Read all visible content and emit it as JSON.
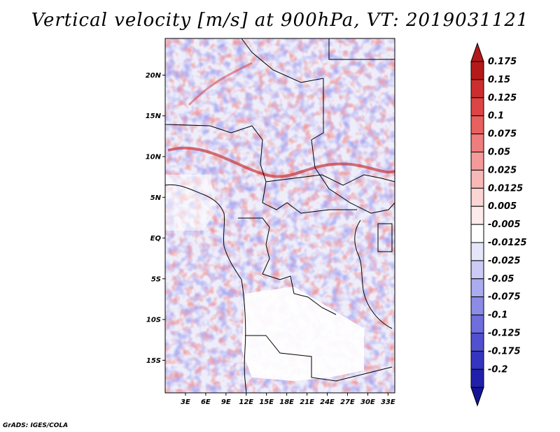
{
  "title": "Vertical velocity [m/s] at 900hPa, VT: 2019031121",
  "credit": "GrADS: IGES/COLA",
  "map": {
    "lat_range": [
      -19,
      24.5
    ],
    "lon_range": [
      0,
      34
    ],
    "lat_ticks": [
      {
        "value": 20,
        "label": "20N"
      },
      {
        "value": 15,
        "label": "15N"
      },
      {
        "value": 10,
        "label": "10N"
      },
      {
        "value": 5,
        "label": "5N"
      },
      {
        "value": 0,
        "label": "EQ"
      },
      {
        "value": -5,
        "label": "5S"
      },
      {
        "value": -10,
        "label": "10S"
      },
      {
        "value": -15,
        "label": "15S"
      }
    ],
    "lon_ticks": [
      {
        "value": 3,
        "label": "3E"
      },
      {
        "value": 6,
        "label": "6E"
      },
      {
        "value": 9,
        "label": "9E"
      },
      {
        "value": 12,
        "label": "12E"
      },
      {
        "value": 15,
        "label": "15E"
      },
      {
        "value": 18,
        "label": "18E"
      },
      {
        "value": 21,
        "label": "21E"
      },
      {
        "value": 24,
        "label": "24E"
      },
      {
        "value": 27,
        "label": "27E"
      },
      {
        "value": 30,
        "label": "30E"
      },
      {
        "value": 33,
        "label": "33E"
      }
    ]
  },
  "colorbar": {
    "levels": [
      {
        "label": "0.175",
        "color": "#b51a1a"
      },
      {
        "label": "0.15",
        "color": "#cc2e2e"
      },
      {
        "label": "0.125",
        "color": "#dd4545"
      },
      {
        "label": "0.1",
        "color": "#e86060"
      },
      {
        "label": "0.075",
        "color": "#ef7d7d"
      },
      {
        "label": "0.05",
        "color": "#f49a9a"
      },
      {
        "label": "0.025",
        "color": "#f8b8b8"
      },
      {
        "label": "0.0125",
        "color": "#fbd4d4"
      },
      {
        "label": "0.005",
        "color": "#fdeaea"
      },
      {
        "label": "-0.005",
        "color": "#ffffff"
      },
      {
        "label": "-0.0125",
        "color": "#e6e6fb"
      },
      {
        "label": "-0.025",
        "color": "#cbcbf6"
      },
      {
        "label": "-0.05",
        "color": "#ababef"
      },
      {
        "label": "-0.075",
        "color": "#8c8ce7"
      },
      {
        "label": "-0.1",
        "color": "#6e6edd"
      },
      {
        "label": "-0.125",
        "color": "#5050d0"
      },
      {
        "label": "-0.175",
        "color": "#3535bf"
      },
      {
        "label": "-0.2",
        "color": "#2020aa"
      }
    ],
    "bottom_color": "#141496"
  }
}
